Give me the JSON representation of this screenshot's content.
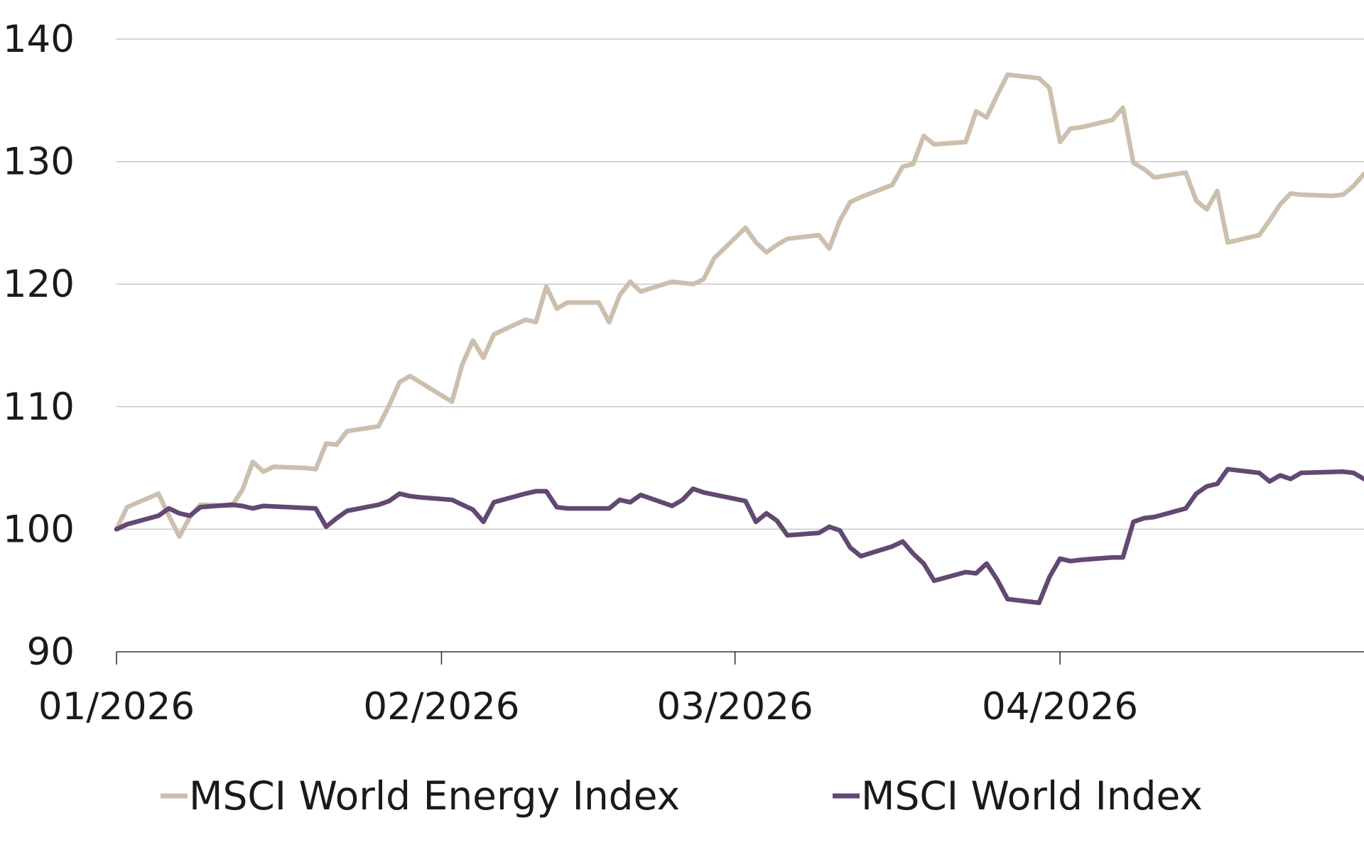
{
  "chart_data": {
    "type": "line",
    "title": "",
    "xlabel": "",
    "ylabel": "",
    "ylim": [
      90,
      140
    ],
    "yticks": [
      90,
      100,
      110,
      120,
      130,
      140
    ],
    "ytick_labels": [
      "90",
      "100",
      "110",
      "120",
      "130",
      "140"
    ],
    "xlim": [
      "2026-01-01",
      "2026-04-30"
    ],
    "xticks": [
      "2026-01-01",
      "2026-02-01",
      "2026-03-01",
      "2026-04-01"
    ],
    "xtick_labels": [
      "01/2026",
      "02/2026",
      "03/2026",
      "04/2026"
    ],
    "grid": "horizontal",
    "legend_position": "bottom",
    "series": [
      {
        "name": "MSCI World Energy Index",
        "color": "#cdbfae",
        "points": [
          [
            "2026-01-01",
            100.0
          ],
          [
            "2026-01-02",
            101.8
          ],
          [
            "2026-01-05",
            102.9
          ],
          [
            "2026-01-06",
            101.1
          ],
          [
            "2026-01-07",
            99.4
          ],
          [
            "2026-01-08",
            101.0
          ],
          [
            "2026-01-09",
            102.0
          ],
          [
            "2026-01-12",
            101.9
          ],
          [
            "2026-01-13",
            103.2
          ],
          [
            "2026-01-14",
            105.5
          ],
          [
            "2026-01-15",
            104.7
          ],
          [
            "2026-01-16",
            105.1
          ],
          [
            "2026-01-19",
            105.0
          ],
          [
            "2026-01-20",
            104.9
          ],
          [
            "2026-01-21",
            107.0
          ],
          [
            "2026-01-22",
            106.9
          ],
          [
            "2026-01-23",
            108.0
          ],
          [
            "2026-01-26",
            108.4
          ],
          [
            "2026-01-27",
            110.1
          ],
          [
            "2026-01-28",
            112.0
          ],
          [
            "2026-01-29",
            112.5
          ],
          [
            "2026-02-02",
            110.4
          ],
          [
            "2026-02-03",
            113.5
          ],
          [
            "2026-02-04",
            115.4
          ],
          [
            "2026-02-05",
            114.0
          ],
          [
            "2026-02-06",
            115.9
          ],
          [
            "2026-02-09",
            117.1
          ],
          [
            "2026-02-10",
            116.9
          ],
          [
            "2026-02-11",
            119.8
          ],
          [
            "2026-02-12",
            118.0
          ],
          [
            "2026-02-13",
            118.5
          ],
          [
            "2026-02-16",
            118.5
          ],
          [
            "2026-02-17",
            116.9
          ],
          [
            "2026-02-18",
            119.1
          ],
          [
            "2026-02-19",
            120.2
          ],
          [
            "2026-02-20",
            119.4
          ],
          [
            "2026-02-23",
            120.2
          ],
          [
            "2026-02-24",
            120.1
          ],
          [
            "2026-02-25",
            120.0
          ],
          [
            "2026-02-26",
            120.4
          ],
          [
            "2026-02-27",
            122.1
          ],
          [
            "2026-03-02",
            124.6
          ],
          [
            "2026-03-03",
            123.4
          ],
          [
            "2026-03-04",
            122.6
          ],
          [
            "2026-03-05",
            123.2
          ],
          [
            "2026-03-06",
            123.7
          ],
          [
            "2026-03-09",
            124.0
          ],
          [
            "2026-03-10",
            122.9
          ],
          [
            "2026-03-11",
            125.2
          ],
          [
            "2026-03-12",
            126.7
          ],
          [
            "2026-03-13",
            127.1
          ],
          [
            "2026-03-16",
            128.1
          ],
          [
            "2026-03-17",
            129.6
          ],
          [
            "2026-03-18",
            129.8
          ],
          [
            "2026-03-19",
            132.1
          ],
          [
            "2026-03-20",
            131.4
          ],
          [
            "2026-03-23",
            131.6
          ],
          [
            "2026-03-24",
            134.1
          ],
          [
            "2026-03-25",
            133.6
          ],
          [
            "2026-03-26",
            135.4
          ],
          [
            "2026-03-27",
            137.1
          ],
          [
            "2026-03-30",
            136.8
          ],
          [
            "2026-03-31",
            136.0
          ],
          [
            "2026-04-01",
            131.6
          ],
          [
            "2026-04-02",
            132.7
          ],
          [
            "2026-04-03",
            132.8
          ],
          [
            "2026-04-06",
            133.4
          ],
          [
            "2026-04-07",
            134.4
          ],
          [
            "2026-04-08",
            129.9
          ],
          [
            "2026-04-09",
            129.4
          ],
          [
            "2026-04-10",
            128.7
          ],
          [
            "2026-04-13",
            129.1
          ],
          [
            "2026-04-14",
            126.8
          ],
          [
            "2026-04-15",
            126.1
          ],
          [
            "2026-04-16",
            127.6
          ],
          [
            "2026-04-17",
            123.4
          ],
          [
            "2026-04-20",
            124.0
          ],
          [
            "2026-04-21",
            125.2
          ],
          [
            "2026-04-22",
            126.5
          ],
          [
            "2026-04-23",
            127.4
          ],
          [
            "2026-04-24",
            127.3
          ],
          [
            "2026-04-27",
            127.2
          ],
          [
            "2026-04-28",
            127.3
          ],
          [
            "2026-04-29",
            128.0
          ],
          [
            "2026-04-30",
            129.0
          ]
        ]
      },
      {
        "name": "MSCI World Index",
        "color": "#624872",
        "points": [
          [
            "2026-01-01",
            100.0
          ],
          [
            "2026-01-02",
            100.4
          ],
          [
            "2026-01-05",
            101.1
          ],
          [
            "2026-01-06",
            101.7
          ],
          [
            "2026-01-07",
            101.3
          ],
          [
            "2026-01-08",
            101.1
          ],
          [
            "2026-01-09",
            101.8
          ],
          [
            "2026-01-12",
            102.0
          ],
          [
            "2026-01-13",
            101.9
          ],
          [
            "2026-01-14",
            101.7
          ],
          [
            "2026-01-15",
            101.9
          ],
          [
            "2026-01-20",
            101.7
          ],
          [
            "2026-01-21",
            100.2
          ],
          [
            "2026-01-22",
            100.9
          ],
          [
            "2026-01-23",
            101.5
          ],
          [
            "2026-01-26",
            102.0
          ],
          [
            "2026-01-27",
            102.3
          ],
          [
            "2026-01-28",
            102.9
          ],
          [
            "2026-01-29",
            102.7
          ],
          [
            "2026-01-30",
            102.6
          ],
          [
            "2026-02-02",
            102.4
          ],
          [
            "2026-02-03",
            102.0
          ],
          [
            "2026-02-04",
            101.6
          ],
          [
            "2026-02-05",
            100.6
          ],
          [
            "2026-02-06",
            102.2
          ],
          [
            "2026-02-09",
            102.9
          ],
          [
            "2026-02-10",
            103.1
          ],
          [
            "2026-02-11",
            103.1
          ],
          [
            "2026-02-12",
            101.8
          ],
          [
            "2026-02-13",
            101.7
          ],
          [
            "2026-02-17",
            101.7
          ],
          [
            "2026-02-18",
            102.4
          ],
          [
            "2026-02-19",
            102.2
          ],
          [
            "2026-02-20",
            102.8
          ],
          [
            "2026-02-23",
            101.9
          ],
          [
            "2026-02-24",
            102.4
          ],
          [
            "2026-02-25",
            103.3
          ],
          [
            "2026-02-26",
            103.0
          ],
          [
            "2026-03-02",
            102.3
          ],
          [
            "2026-03-03",
            100.6
          ],
          [
            "2026-03-04",
            101.3
          ],
          [
            "2026-03-05",
            100.7
          ],
          [
            "2026-03-06",
            99.5
          ],
          [
            "2026-03-09",
            99.7
          ],
          [
            "2026-03-10",
            100.2
          ],
          [
            "2026-03-11",
            99.9
          ],
          [
            "2026-03-12",
            98.5
          ],
          [
            "2026-03-13",
            97.8
          ],
          [
            "2026-03-16",
            98.6
          ],
          [
            "2026-03-17",
            99.0
          ],
          [
            "2026-03-18",
            98.0
          ],
          [
            "2026-03-19",
            97.2
          ],
          [
            "2026-03-20",
            95.8
          ],
          [
            "2026-03-23",
            96.5
          ],
          [
            "2026-03-24",
            96.4
          ],
          [
            "2026-03-25",
            97.2
          ],
          [
            "2026-03-26",
            95.9
          ],
          [
            "2026-03-27",
            94.3
          ],
          [
            "2026-03-30",
            94.0
          ],
          [
            "2026-03-31",
            96.1
          ],
          [
            "2026-04-01",
            97.6
          ],
          [
            "2026-04-02",
            97.4
          ],
          [
            "2026-04-03",
            97.5
          ],
          [
            "2026-04-06",
            97.7
          ],
          [
            "2026-04-07",
            97.7
          ],
          [
            "2026-04-08",
            100.6
          ],
          [
            "2026-04-09",
            100.9
          ],
          [
            "2026-04-10",
            101.0
          ],
          [
            "2026-04-13",
            101.7
          ],
          [
            "2026-04-14",
            102.9
          ],
          [
            "2026-04-15",
            103.5
          ],
          [
            "2026-04-16",
            103.7
          ],
          [
            "2026-04-17",
            104.9
          ],
          [
            "2026-04-20",
            104.6
          ],
          [
            "2026-04-21",
            103.9
          ],
          [
            "2026-04-22",
            104.4
          ],
          [
            "2026-04-23",
            104.1
          ],
          [
            "2026-04-24",
            104.6
          ],
          [
            "2026-04-28",
            104.7
          ],
          [
            "2026-04-29",
            104.6
          ],
          [
            "2026-04-30",
            104.1
          ]
        ]
      }
    ]
  }
}
